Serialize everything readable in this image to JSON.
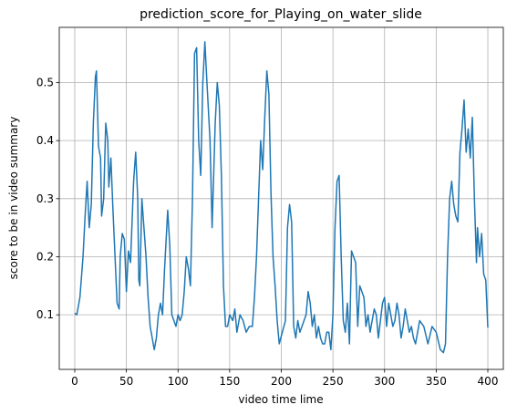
{
  "chart_data": {
    "type": "line",
    "title": "prediction_score_for_Playing_on_water_slide",
    "x_label": "video time lime",
    "y_label": "score to be in video summary",
    "x": [
      0,
      2,
      5,
      8,
      10,
      12,
      14,
      16,
      18,
      20,
      21,
      23,
      25,
      26,
      28,
      30,
      32,
      33,
      35,
      37,
      39,
      41,
      43,
      44,
      46,
      48,
      50,
      52,
      54,
      57,
      59,
      61,
      62,
      63,
      65,
      67,
      69,
      71,
      73,
      75,
      77,
      79,
      81,
      83,
      85,
      87,
      90,
      92,
      94,
      96,
      98,
      100,
      102,
      104,
      106,
      108,
      110,
      112,
      114,
      116,
      118,
      120,
      122,
      124,
      126,
      128,
      131,
      133,
      136,
      138,
      140,
      142,
      144,
      146,
      148,
      150,
      153,
      155,
      157,
      160,
      163,
      166,
      169,
      172,
      174,
      176,
      178,
      180,
      182,
      184,
      186,
      188,
      190,
      192,
      194,
      196,
      198,
      201,
      204,
      206,
      208,
      210,
      212,
      214,
      216,
      218,
      220,
      222,
      224,
      226,
      228,
      230,
      232,
      234,
      236,
      238,
      240,
      242,
      244,
      246,
      248,
      250,
      252,
      254,
      256,
      258,
      260,
      262,
      264,
      266,
      268,
      270,
      272,
      274,
      276,
      278,
      280,
      282,
      284,
      286,
      288,
      290,
      292,
      294,
      296,
      298,
      300,
      302,
      304,
      306,
      308,
      310,
      312,
      314,
      316,
      318,
      320,
      322,
      324,
      326,
      328,
      330,
      334,
      338,
      342,
      346,
      350,
      354,
      357,
      359,
      361,
      363,
      365,
      367,
      369,
      371,
      373,
      375,
      377,
      379,
      381,
      383,
      385,
      387,
      389,
      390,
      392,
      394,
      396,
      398,
      400
    ],
    "series": [
      {
        "name": "prediction score",
        "color": "#1f77b4",
        "values": [
          0.103,
          0.1,
          0.13,
          0.2,
          0.27,
          0.33,
          0.25,
          0.29,
          0.43,
          0.51,
          0.52,
          0.39,
          0.37,
          0.27,
          0.3,
          0.43,
          0.4,
          0.32,
          0.37,
          0.28,
          0.2,
          0.12,
          0.11,
          0.2,
          0.24,
          0.23,
          0.14,
          0.21,
          0.19,
          0.33,
          0.38,
          0.3,
          0.16,
          0.15,
          0.3,
          0.25,
          0.2,
          0.13,
          0.08,
          0.06,
          0.04,
          0.06,
          0.1,
          0.12,
          0.1,
          0.18,
          0.28,
          0.22,
          0.1,
          0.09,
          0.08,
          0.1,
          0.09,
          0.1,
          0.14,
          0.2,
          0.18,
          0.15,
          0.3,
          0.55,
          0.56,
          0.4,
          0.34,
          0.5,
          0.57,
          0.5,
          0.4,
          0.25,
          0.43,
          0.5,
          0.46,
          0.34,
          0.15,
          0.08,
          0.08,
          0.1,
          0.09,
          0.11,
          0.07,
          0.1,
          0.09,
          0.07,
          0.08,
          0.08,
          0.13,
          0.2,
          0.3,
          0.4,
          0.35,
          0.44,
          0.52,
          0.48,
          0.31,
          0.2,
          0.15,
          0.09,
          0.05,
          0.07,
          0.09,
          0.25,
          0.29,
          0.26,
          0.08,
          0.06,
          0.09,
          0.07,
          0.08,
          0.09,
          0.1,
          0.14,
          0.12,
          0.08,
          0.1,
          0.06,
          0.08,
          0.06,
          0.05,
          0.05,
          0.07,
          0.07,
          0.04,
          0.1,
          0.25,
          0.33,
          0.34,
          0.2,
          0.09,
          0.07,
          0.12,
          0.05,
          0.21,
          0.2,
          0.19,
          0.08,
          0.15,
          0.14,
          0.13,
          0.08,
          0.1,
          0.07,
          0.09,
          0.11,
          0.1,
          0.06,
          0.09,
          0.12,
          0.13,
          0.08,
          0.12,
          0.1,
          0.08,
          0.09,
          0.12,
          0.1,
          0.06,
          0.08,
          0.11,
          0.09,
          0.07,
          0.08,
          0.06,
          0.05,
          0.09,
          0.08,
          0.05,
          0.08,
          0.07,
          0.04,
          0.035,
          0.05,
          0.2,
          0.3,
          0.33,
          0.29,
          0.27,
          0.26,
          0.38,
          0.42,
          0.47,
          0.38,
          0.42,
          0.37,
          0.44,
          0.3,
          0.19,
          0.25,
          0.2,
          0.24,
          0.17,
          0.16,
          0.078
        ]
      }
    ],
    "xlim": [
      -15,
      415
    ],
    "xticks": [
      0,
      50,
      100,
      150,
      200,
      250,
      300,
      350,
      400
    ],
    "ylim": [
      0.006,
      0.595
    ],
    "yticks": [
      0.1,
      0.2,
      0.3,
      0.4,
      0.5
    ],
    "grid": true
  }
}
